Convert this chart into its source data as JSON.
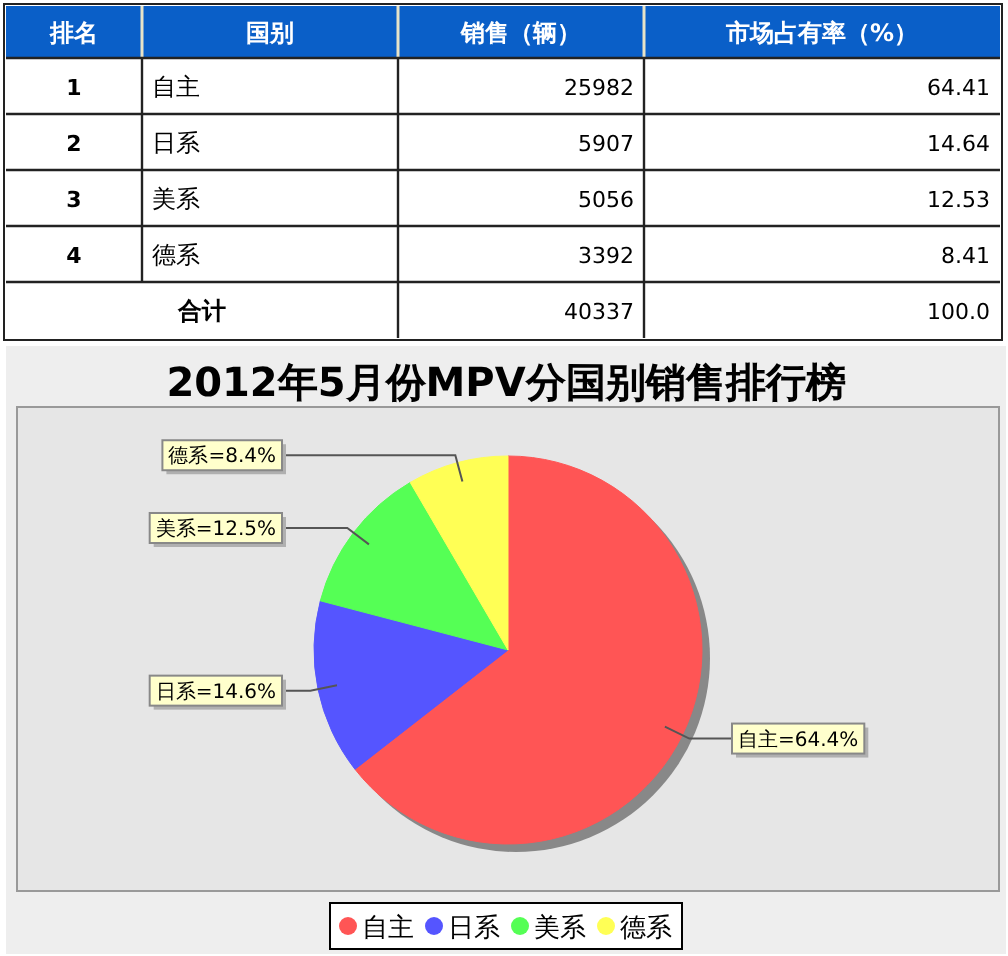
{
  "chart_data": [
    {
      "type": "other",
      "xlabel": "国别",
      "categories": [
        "自主",
        "日系",
        "美系",
        "德系",
        "合计"
      ],
      "series": [
        {
          "name": "排名",
          "values": [
            1,
            2,
            3,
            4,
            null
          ]
        },
        {
          "name": "销售（辆）",
          "values": [
            25982,
            5907,
            5056,
            3392,
            40337
          ]
        },
        {
          "name": "市场占有率（%）",
          "values": [
            64.41,
            14.64,
            12.53,
            8.41,
            100.0
          ],
          "value_labels": [
            "64.41",
            "14.64",
            "12.53",
            "8.41",
            "100.0"
          ]
        }
      ],
      "data_labels": true
    },
    {
      "type": "pie",
      "title": "2012年5月份MPV分国别销售排行榜",
      "categories": [
        "自主",
        "日系",
        "美系",
        "德系"
      ],
      "values": [
        64.4,
        14.6,
        12.5,
        8.4
      ],
      "colors": [
        "#ff5555",
        "#5555ff",
        "#55ff55",
        "#ffff55"
      ],
      "value_labels": [
        "自主=64.4%",
        "日系=14.6%",
        "美系=12.5%",
        "德系=8.4%"
      ],
      "legend": "bottom"
    }
  ]
}
